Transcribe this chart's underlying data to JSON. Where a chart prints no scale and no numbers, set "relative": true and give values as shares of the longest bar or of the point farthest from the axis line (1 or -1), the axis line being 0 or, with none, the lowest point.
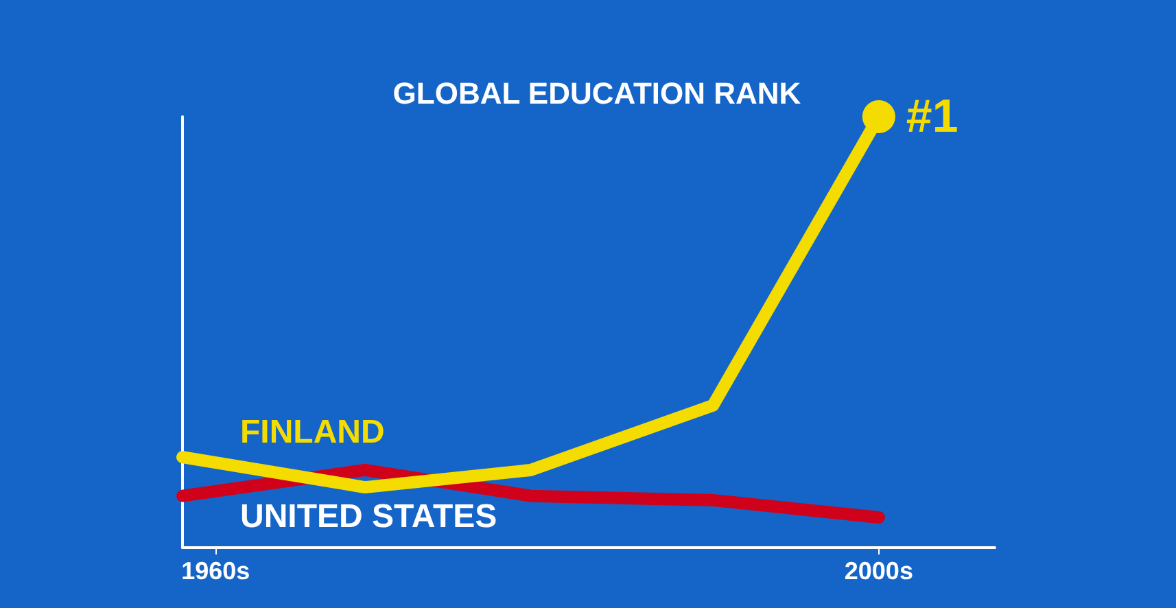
{
  "chart_data": {
    "type": "line",
    "title": "GLOBAL EDUCATION RANK",
    "relative": true,
    "x": [
      1958,
      1969,
      1979,
      1990,
      2000
    ],
    "xlim": [
      1958,
      2007
    ],
    "xticks": [
      {
        "value": 1960,
        "label": "1960s"
      },
      {
        "value": 2000,
        "label": "2000s"
      }
    ],
    "series": [
      {
        "name": "FINLAND",
        "color": "#f5dc00",
        "values": [
          0.21,
          0.14,
          0.18,
          0.33,
          1
        ]
      },
      {
        "name": "UNITED STATES",
        "color": "#d0021b",
        "values": [
          0.12,
          0.18,
          0.12,
          0.11,
          0.07
        ]
      }
    ],
    "annotations": [
      {
        "text": "#1",
        "x": 2000,
        "y": 1
      }
    ],
    "tick_labels": "x",
    "grid": false,
    "legend": false,
    "marker": "none",
    "line_style": "solid"
  }
}
